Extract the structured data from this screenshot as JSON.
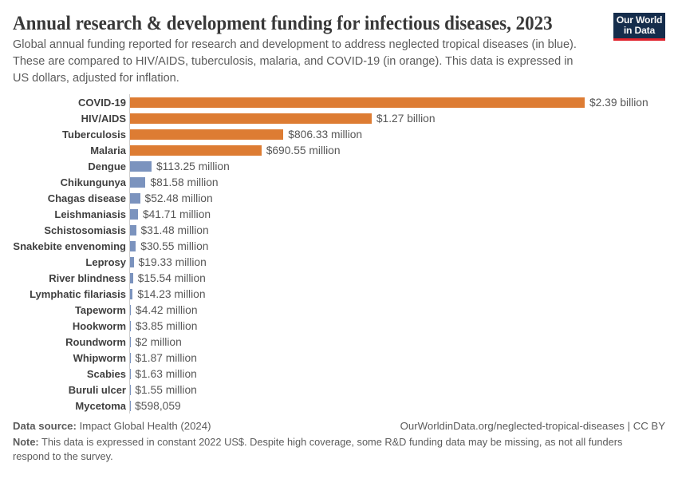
{
  "header": {
    "title": "Annual research & development funding for infectious diseases, 2023",
    "subtitle": "Global annual funding reported for research and development to address neglected tropical diseases (in blue). These are compared to HIV/AIDS, tuberculosis, malaria, and COVID-19 (in orange). This data is expressed in US dollars, adjusted for inflation."
  },
  "logo": {
    "line1": "Our World",
    "line2": "in Data"
  },
  "colors": {
    "orange": "#dd7c33",
    "blue": "#7b93be",
    "logo_navy": "#152d4c",
    "logo_red": "#e0232c",
    "axis_line": "#cfcfcf"
  },
  "chart_data": {
    "type": "bar",
    "orientation": "horizontal",
    "title": "Annual research & development funding for infectious diseases, 2023",
    "xlabel": "",
    "ylabel": "",
    "unit": "US dollars, adjusted for inflation",
    "xlim_millions": [
      0,
      2390
    ],
    "grid": false,
    "legend": false,
    "categories": [
      "COVID-19",
      "HIV/AIDS",
      "Tuberculosis",
      "Malaria",
      "Dengue",
      "Chikungunya",
      "Chagas disease",
      "Leishmaniasis",
      "Schistosomiasis",
      "Snakebite envenoming",
      "Leprosy",
      "River blindness",
      "Lymphatic filariasis",
      "Tapeworm",
      "Hookworm",
      "Roundworm",
      "Whipworm",
      "Scabies",
      "Buruli ulcer",
      "Mycetoma"
    ],
    "values_millions": [
      2390,
      1270,
      806.33,
      690.55,
      113.25,
      81.58,
      52.48,
      41.71,
      31.48,
      30.55,
      19.33,
      15.54,
      14.23,
      4.42,
      3.85,
      2,
      1.87,
      1.63,
      1.55,
      0.598059
    ],
    "value_labels": [
      "$2.39 billion",
      "$1.27 billion",
      "$806.33 million",
      "$690.55 million",
      "$113.25 million",
      "$81.58 million",
      "$52.48 million",
      "$41.71 million",
      "$31.48 million",
      "$30.55 million",
      "$19.33 million",
      "$15.54 million",
      "$14.23 million",
      "$4.42 million",
      "$3.85 million",
      "$2 million",
      "$1.87 million",
      "$1.63 million",
      "$1.55 million",
      "$598,059"
    ],
    "series_colors": [
      "orange",
      "orange",
      "orange",
      "orange",
      "blue",
      "blue",
      "blue",
      "blue",
      "blue",
      "blue",
      "blue",
      "blue",
      "blue",
      "blue",
      "blue",
      "blue",
      "blue",
      "blue",
      "blue",
      "blue"
    ]
  },
  "footer": {
    "source_label": "Data source:",
    "source_text": "Impact Global Health (2024)",
    "url_text": "OurWorldinData.org/neglected-tropical-diseases",
    "license_separator": "|",
    "license_text": "CC BY",
    "note_label": "Note:",
    "note_text": "This data is expressed in constant 2022 US$. Despite high coverage, some R&D funding data may be missing, as not all funders respond to the survey."
  }
}
